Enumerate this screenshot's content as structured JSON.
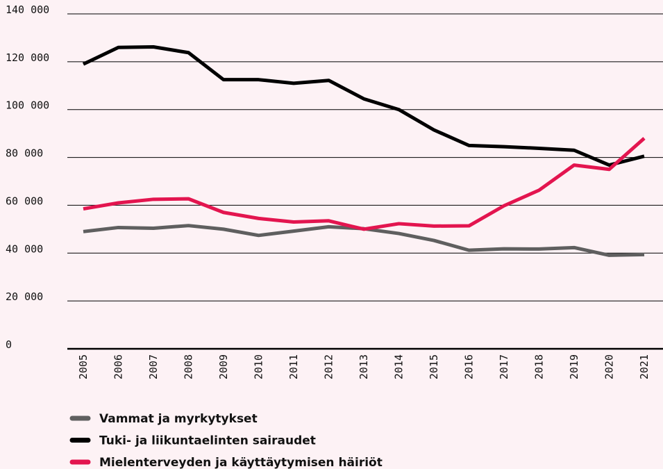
{
  "chart_data": {
    "type": "line",
    "categories": [
      "2005",
      "2006",
      "2007",
      "2008",
      "2009",
      "2010",
      "2011",
      "2012",
      "2013",
      "2014",
      "2015",
      "2016",
      "2017",
      "2018",
      "2019",
      "2020",
      "2021"
    ],
    "series": [
      {
        "name": "Vammat ja myrkytykset",
        "color": "#5f5f5f",
        "values": [
          49000,
          50700,
          50400,
          51500,
          50000,
          47400,
          49200,
          51000,
          50200,
          48200,
          45300,
          41200,
          41800,
          41700,
          42300,
          39100,
          39400
        ]
      },
      {
        "name": "Tuki- ja liikuntaelinten sairaudet",
        "color": "#000000",
        "values": [
          119000,
          126000,
          126200,
          123800,
          112500,
          112500,
          111000,
          112200,
          104500,
          100000,
          91500,
          85000,
          84500,
          83800,
          83000,
          76800,
          80500
        ]
      },
      {
        "name": "Mielenterveyden ja käyttäytymisen häiriöt",
        "color": "#e3154f",
        "values": [
          58500,
          61000,
          62500,
          62700,
          57000,
          54500,
          53000,
          53500,
          50000,
          52300,
          51300,
          51400,
          59800,
          66300,
          76800,
          75000,
          88000
        ]
      }
    ],
    "ylim": [
      0,
      140000
    ],
    "yticks": [
      0,
      {
        "value": 20000,
        "label": "20 000"
      },
      {
        "value": 40000,
        "label": "40 000"
      },
      {
        "value": 60000,
        "label": "60 000"
      },
      {
        "value": 80000,
        "label": "80 000"
      },
      {
        "value": 100000,
        "label": "100 000"
      },
      {
        "value": 120000,
        "label": "120 000"
      },
      {
        "value": 140000,
        "label": "140 000"
      }
    ],
    "grid": true
  }
}
